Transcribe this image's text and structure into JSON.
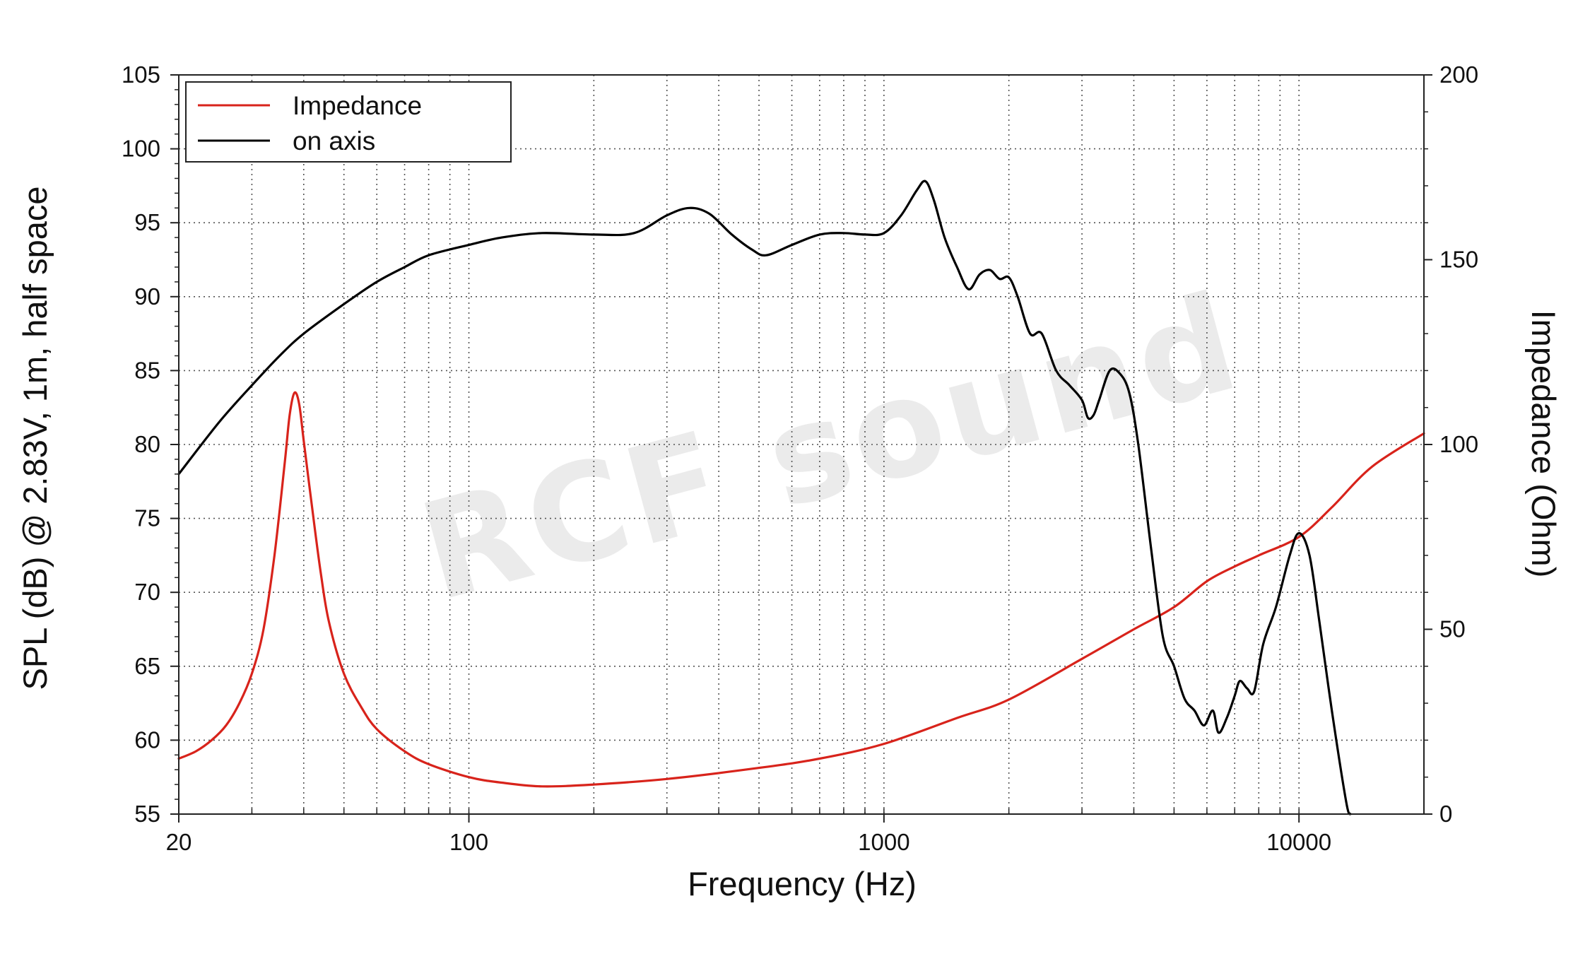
{
  "watermark": {
    "text": "RCF sound"
  },
  "chart_data": {
    "type": "line",
    "x_scale": "log",
    "xlim": [
      20,
      20000
    ],
    "ylim": [
      55,
      105
    ],
    "y2lim": [
      0,
      200
    ],
    "grid": true,
    "legend_position": "top-left",
    "xlabel": "Frequency (Hz)",
    "ylabel": "SPL (dB) @ 2.83V, 1m, half space",
    "y2label": "Impedance (Ohm)",
    "x_ticks": [
      {
        "value": 20,
        "label": "20"
      },
      {
        "value": 100,
        "label": "100"
      },
      {
        "value": 1000,
        "label": "1000"
      },
      {
        "value": 10000,
        "label": "10000"
      }
    ],
    "y_ticks": [
      {
        "value": 55,
        "label": "55"
      },
      {
        "value": 60,
        "label": "60"
      },
      {
        "value": 65,
        "label": "65"
      },
      {
        "value": 70,
        "label": "70"
      },
      {
        "value": 75,
        "label": "75"
      },
      {
        "value": 80,
        "label": "80"
      },
      {
        "value": 85,
        "label": "85"
      },
      {
        "value": 90,
        "label": "90"
      },
      {
        "value": 95,
        "label": "95"
      },
      {
        "value": 100,
        "label": "100"
      },
      {
        "value": 105,
        "label": "105"
      }
    ],
    "y2_ticks": [
      {
        "value": 0,
        "label": "0"
      },
      {
        "value": 50,
        "label": "50"
      },
      {
        "value": 100,
        "label": "100"
      },
      {
        "value": 150,
        "label": "150"
      },
      {
        "value": 200,
        "label": "200"
      }
    ],
    "series": [
      {
        "name": "Impedance",
        "axis": "right",
        "color": "#d8231b",
        "points": [
          [
            20,
            15
          ],
          [
            22,
            17
          ],
          [
            24,
            20
          ],
          [
            26,
            24
          ],
          [
            28,
            30
          ],
          [
            30,
            38
          ],
          [
            32,
            50
          ],
          [
            34,
            70
          ],
          [
            36,
            95
          ],
          [
            37,
            108
          ],
          [
            38,
            114
          ],
          [
            39,
            111
          ],
          [
            40,
            101
          ],
          [
            42,
            82
          ],
          [
            44,
            65
          ],
          [
            46,
            52
          ],
          [
            50,
            38
          ],
          [
            55,
            29
          ],
          [
            60,
            23
          ],
          [
            70,
            17
          ],
          [
            80,
            13.5
          ],
          [
            100,
            10
          ],
          [
            120,
            8.5
          ],
          [
            150,
            7.5
          ],
          [
            200,
            8
          ],
          [
            300,
            9.5
          ],
          [
            500,
            12.5
          ],
          [
            700,
            15
          ],
          [
            1000,
            19
          ],
          [
            1500,
            26
          ],
          [
            2000,
            31
          ],
          [
            3000,
            42
          ],
          [
            4000,
            50
          ],
          [
            5000,
            56
          ],
          [
            6000,
            63
          ],
          [
            7000,
            67
          ],
          [
            8000,
            70
          ],
          [
            10000,
            75
          ],
          [
            12000,
            83
          ],
          [
            15000,
            94
          ],
          [
            20000,
            103
          ]
        ]
      },
      {
        "name": "on axis",
        "axis": "left",
        "color": "#000000",
        "points": [
          [
            20,
            78
          ],
          [
            25,
            81.5
          ],
          [
            30,
            84
          ],
          [
            35,
            86
          ],
          [
            40,
            87.5
          ],
          [
            50,
            89.5
          ],
          [
            60,
            91
          ],
          [
            70,
            92
          ],
          [
            80,
            92.8
          ],
          [
            100,
            93.5
          ],
          [
            120,
            94
          ],
          [
            150,
            94.3
          ],
          [
            200,
            94.2
          ],
          [
            250,
            94.3
          ],
          [
            300,
            95.5
          ],
          [
            340,
            96
          ],
          [
            380,
            95.6
          ],
          [
            430,
            94.2
          ],
          [
            480,
            93.2
          ],
          [
            520,
            92.8
          ],
          [
            600,
            93.5
          ],
          [
            700,
            94.2
          ],
          [
            800,
            94.3
          ],
          [
            900,
            94.2
          ],
          [
            1000,
            94.3
          ],
          [
            1100,
            95.5
          ],
          [
            1200,
            97.2
          ],
          [
            1260,
            97.8
          ],
          [
            1320,
            96.5
          ],
          [
            1400,
            94
          ],
          [
            1500,
            92
          ],
          [
            1600,
            90.5
          ],
          [
            1700,
            91.5
          ],
          [
            1800,
            91.8
          ],
          [
            1900,
            91.2
          ],
          [
            2000,
            91.3
          ],
          [
            2100,
            90
          ],
          [
            2250,
            87.5
          ],
          [
            2400,
            87.5
          ],
          [
            2600,
            85
          ],
          [
            2800,
            84
          ],
          [
            3000,
            83
          ],
          [
            3100,
            81.8
          ],
          [
            3200,
            82
          ],
          [
            3300,
            83
          ],
          [
            3500,
            85
          ],
          [
            3700,
            84.8
          ],
          [
            3900,
            83.5
          ],
          [
            4100,
            80
          ],
          [
            4400,
            73
          ],
          [
            4700,
            67
          ],
          [
            5000,
            65
          ],
          [
            5300,
            62.8
          ],
          [
            5600,
            62
          ],
          [
            5900,
            61
          ],
          [
            6200,
            62
          ],
          [
            6400,
            60.5
          ],
          [
            6700,
            61.5
          ],
          [
            7000,
            63
          ],
          [
            7200,
            64
          ],
          [
            7500,
            63.5
          ],
          [
            7800,
            63.3
          ],
          [
            8200,
            66.5
          ],
          [
            8800,
            69
          ],
          [
            9500,
            72.5
          ],
          [
            10000,
            74
          ],
          [
            10600,
            72.5
          ],
          [
            11200,
            68
          ],
          [
            12000,
            62
          ],
          [
            13000,
            55.8
          ],
          [
            13300,
            55
          ]
        ]
      }
    ]
  }
}
